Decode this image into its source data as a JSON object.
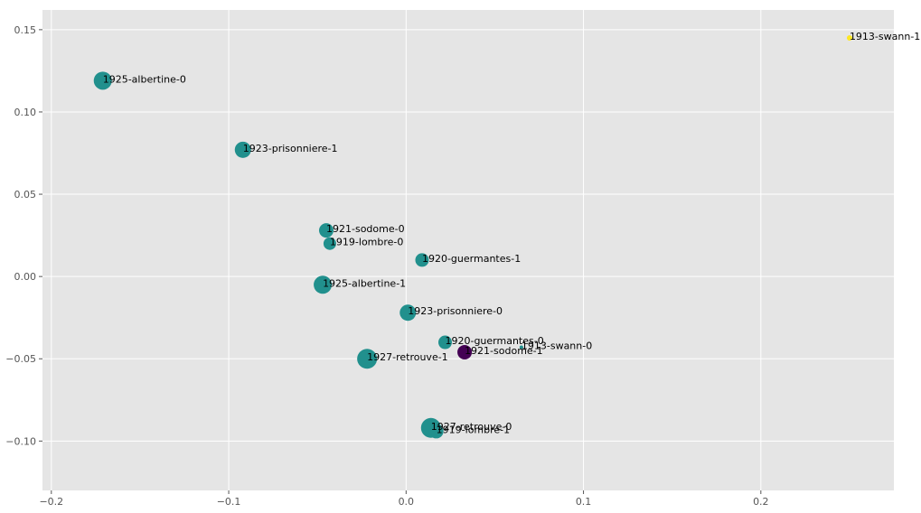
{
  "chart_data": {
    "type": "scatter",
    "title": "",
    "xlabel": "",
    "ylabel": "",
    "xlim": [
      -0.205,
      0.275
    ],
    "ylim": [
      -0.13,
      0.162
    ],
    "xticks": [
      -0.2,
      -0.1,
      0.0,
      0.1,
      0.2
    ],
    "xtick_labels": [
      "−0.2",
      "−0.1",
      "0.0",
      "0.1",
      "0.2"
    ],
    "yticks": [
      -0.1,
      -0.05,
      0.0,
      0.05,
      0.1,
      0.15
    ],
    "ytick_labels": [
      "−0.10",
      "−0.05",
      "0.00",
      "0.05",
      "0.10",
      "0.15"
    ],
    "grid": true,
    "background_color": "#e5e5e5",
    "grid_color": "#ffffff",
    "colors": {
      "teal": "#21908d",
      "purple": "#440154",
      "yellow": "#fde725"
    },
    "points": [
      {
        "label": "1913-swann-1",
        "x": 0.25,
        "y": 0.145,
        "size": 3,
        "color": "#fde725"
      },
      {
        "label": "1925-albertine-0",
        "x": -0.171,
        "y": 0.119,
        "size": 10,
        "color": "#21908d"
      },
      {
        "label": "1923-prisonniere-1",
        "x": -0.092,
        "y": 0.077,
        "size": 9,
        "color": "#21908d"
      },
      {
        "label": "1921-sodome-0",
        "x": -0.045,
        "y": 0.028,
        "size": 8,
        "color": "#21908d"
      },
      {
        "label": "1919-lombre-0",
        "x": -0.043,
        "y": 0.02,
        "size": 7,
        "color": "#21908d"
      },
      {
        "label": "1920-guermantes-1",
        "x": 0.009,
        "y": 0.01,
        "size": 7.5,
        "color": "#21908d"
      },
      {
        "label": "1925-albertine-1",
        "x": -0.047,
        "y": -0.005,
        "size": 10,
        "color": "#21908d"
      },
      {
        "label": "1923-prisonniere-0",
        "x": 0.001,
        "y": -0.022,
        "size": 9,
        "color": "#21908d"
      },
      {
        "label": "1920-guermantes-0",
        "x": 0.022,
        "y": -0.04,
        "size": 7.5,
        "color": "#21908d"
      },
      {
        "label": "1913-swann-0",
        "x": 0.065,
        "y": -0.043,
        "size": 2,
        "color": "#21908d"
      },
      {
        "label": "1921-sodome-1",
        "x": 0.033,
        "y": -0.046,
        "size": 8,
        "color": "#440154"
      },
      {
        "label": "1927-retrouve-1",
        "x": -0.022,
        "y": -0.05,
        "size": 11,
        "color": "#21908d"
      },
      {
        "label": "1927-retrouve-0",
        "x": 0.014,
        "y": -0.092,
        "size": 11,
        "color": "#21908d"
      },
      {
        "label": "1919-lombre-1",
        "x": 0.017,
        "y": -0.094,
        "size": 8,
        "color": "#21908d"
      }
    ]
  }
}
